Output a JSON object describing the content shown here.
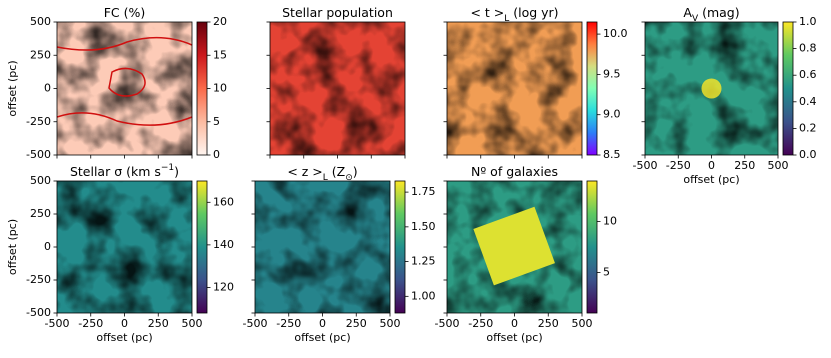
{
  "chart_data": [
    {
      "type": "heatmap",
      "title": [
        {
          "text": "FC (%)"
        }
      ],
      "xlim": [
        -500,
        500
      ],
      "ylim": [
        -500,
        500
      ],
      "xticks": [
        -500,
        -250,
        0,
        250,
        500
      ],
      "yticks": [
        500,
        250,
        0,
        -250,
        -500
      ],
      "xticklabels": false,
      "yticklabels": true,
      "ylabel": "offset (pc)",
      "colormap": "Reds",
      "colorbar": true,
      "clim": [
        0,
        20
      ],
      "cticks": [
        0,
        5,
        10,
        15,
        20
      ]
    },
    {
      "type": "heatmap",
      "title": [
        {
          "text": "Stellar population"
        }
      ],
      "xlim": [
        -500,
        500
      ],
      "ylim": [
        -500,
        500
      ],
      "xticks": [
        -500,
        -250,
        0,
        250,
        500
      ],
      "yticks": [
        500,
        250,
        0,
        -250,
        -500
      ],
      "xticklabels": false,
      "yticklabels": false,
      "colormap": "Reds",
      "colorbar": false
    },
    {
      "type": "heatmap",
      "title": [
        {
          "text": "< t >"
        },
        {
          "sub": "L"
        },
        {
          "text": " (log yr)"
        }
      ],
      "xlim": [
        -500,
        500
      ],
      "ylim": [
        -500,
        500
      ],
      "xticks": [
        -500,
        -250,
        0,
        250,
        500
      ],
      "yticks": [
        500,
        250,
        0,
        -250,
        -500
      ],
      "xticklabels": false,
      "yticklabels": false,
      "colormap": "rainbow",
      "colorbar": true,
      "clim": [
        8.5,
        10.15
      ],
      "cticks": [
        8.5,
        {
          "value": 9,
          "label": "9.0"
        },
        9.5,
        {
          "value": 10,
          "label": "10.0"
        }
      ]
    },
    {
      "type": "heatmap",
      "title": [
        {
          "text": "A"
        },
        {
          "sub": "V"
        },
        {
          "text": " (mag)"
        }
      ],
      "xlim": [
        -500,
        500
      ],
      "ylim": [
        -500,
        500
      ],
      "xticks": [
        -500,
        -250,
        0,
        250,
        500
      ],
      "yticks": [
        500,
        250,
        0,
        -250,
        -500
      ],
      "xticklabels": true,
      "yticklabels": false,
      "xlabel": "offset (pc)",
      "colormap": "viridis",
      "colorbar": true,
      "clim": [
        0,
        1
      ],
      "cticks": [
        {
          "value": 0,
          "label": "0.0"
        },
        0.2,
        0.4,
        0.6,
        0.8,
        {
          "value": 1,
          "label": "1.0"
        }
      ]
    },
    {
      "type": "heatmap",
      "title": [
        {
          "text": "Stellar σ (km s"
        },
        {
          "sup": "−1"
        },
        {
          "text": ")"
        }
      ],
      "xlim": [
        -500,
        500
      ],
      "ylim": [
        -500,
        500
      ],
      "xticks": [
        -500,
        -250,
        0,
        250,
        500
      ],
      "yticks": [
        500,
        250,
        0,
        -250,
        -500
      ],
      "xticklabels": true,
      "yticklabels": true,
      "xlabel": "offset (pc)",
      "ylabel": "offset (pc)",
      "colormap": "viridis",
      "colorbar": true,
      "clim": [
        108,
        170
      ],
      "cticks": [
        120,
        140,
        160
      ]
    },
    {
      "type": "heatmap",
      "title": [
        {
          "text": "< z >"
        },
        {
          "sub": "L"
        },
        {
          "text": " (Z"
        },
        {
          "sub": "⊙"
        },
        {
          "text": ")"
        }
      ],
      "xlim": [
        -500,
        500
      ],
      "ylim": [
        -500,
        500
      ],
      "xticks": [
        -500,
        -250,
        0,
        250,
        500
      ],
      "yticks": [
        500,
        250,
        0,
        -250,
        -500
      ],
      "xticklabels": true,
      "yticklabels": false,
      "xlabel": "offset (pc)",
      "colormap": "viridis",
      "colorbar": true,
      "clim": [
        0.88,
        1.83
      ],
      "cticks": [
        {
          "value": 1,
          "label": "1.00"
        },
        1.25,
        {
          "value": 1.5,
          "label": "1.50"
        },
        1.75
      ]
    },
    {
      "type": "heatmap",
      "title": [
        {
          "text": "Nº of galaxies"
        }
      ],
      "xlim": [
        -500,
        500
      ],
      "ylim": [
        -500,
        500
      ],
      "xticks": [
        -500,
        -250,
        0,
        250,
        500
      ],
      "yticks": [
        500,
        250,
        0,
        -250,
        -500
      ],
      "xticklabels": true,
      "yticklabels": false,
      "xlabel": "offset (pc)",
      "colormap": "viridis",
      "colorbar": true,
      "clim": [
        1,
        14
      ],
      "cticks": [
        5,
        10
      ]
    }
  ]
}
